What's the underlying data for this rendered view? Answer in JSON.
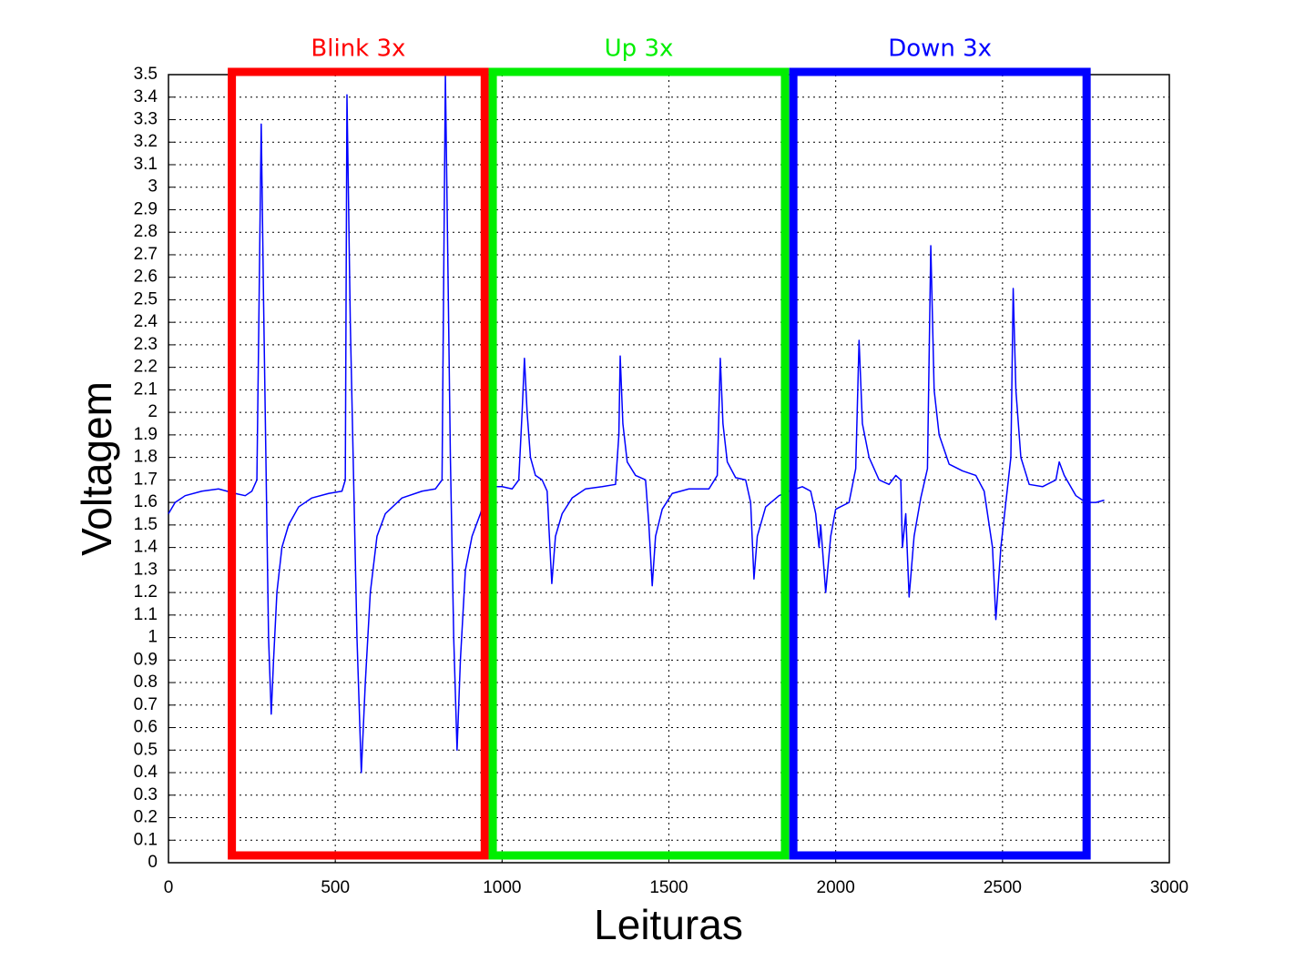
{
  "chart_data": {
    "type": "line",
    "x_label": "Leituras",
    "y_label": "Voltagem",
    "xlim": [
      0,
      3000
    ],
    "ylim": [
      0,
      3.5
    ],
    "xticks": [
      0,
      500,
      1000,
      1500,
      2000,
      2500,
      3000
    ],
    "yticks": [
      0,
      0.1,
      0.2,
      0.3,
      0.4,
      0.5,
      0.6,
      0.7,
      0.8,
      0.9,
      1,
      1.1,
      1.2,
      1.3,
      1.4,
      1.5,
      1.6,
      1.7,
      1.8,
      1.9,
      2,
      2.1,
      2.2,
      2.3,
      2.4,
      2.5,
      2.6,
      2.7,
      2.8,
      2.9,
      3,
      3.1,
      3.2,
      3.3,
      3.4,
      3.5
    ],
    "grid": true,
    "color": "#0000ff",
    "annotations": [
      {
        "text": "Blink 3x",
        "color": "#ff0000",
        "x": [
          190,
          948
        ]
      },
      {
        "text": "Up 3x",
        "color": "#00ee00",
        "x": [
          972,
          1848
        ]
      },
      {
        "text": "Down 3x",
        "color": "#0000ff",
        "x": [
          1873,
          2752
        ]
      }
    ],
    "x": [
      0,
      20,
      50,
      100,
      150,
      200,
      230,
      250,
      265,
      270,
      278,
      285,
      292,
      300,
      308,
      315,
      325,
      340,
      360,
      390,
      430,
      480,
      520,
      530,
      535,
      545,
      555,
      565,
      578,
      590,
      605,
      625,
      650,
      700,
      760,
      800,
      820,
      830,
      838,
      845,
      855,
      865,
      875,
      890,
      910,
      935,
      950,
      970,
      1000,
      1030,
      1050,
      1060,
      1067,
      1075,
      1085,
      1100,
      1120,
      1135,
      1140,
      1149,
      1160,
      1180,
      1210,
      1250,
      1300,
      1340,
      1350,
      1354,
      1362,
      1375,
      1400,
      1430,
      1440,
      1450,
      1460,
      1480,
      1510,
      1560,
      1620,
      1645,
      1654,
      1662,
      1675,
      1700,
      1730,
      1745,
      1755,
      1765,
      1790,
      1830,
      1860,
      1900,
      1925,
      1940,
      1950,
      1955,
      1970,
      1985,
      2000,
      2040,
      2060,
      2070,
      2080,
      2100,
      2130,
      2160,
      2180,
      2195,
      2200,
      2210,
      2220,
      2235,
      2255,
      2275,
      2285,
      2295,
      2310,
      2340,
      2380,
      2420,
      2445,
      2470,
      2480,
      2495,
      2510,
      2525,
      2532,
      2540,
      2555,
      2580,
      2620,
      2660,
      2670,
      2685,
      2720,
      2750,
      2780,
      2805
    ],
    "values": [
      1.55,
      1.6,
      1.63,
      1.65,
      1.66,
      1.64,
      1.63,
      1.65,
      1.7,
      2.3,
      3.28,
      2.5,
      1.8,
      1.0,
      0.66,
      0.9,
      1.2,
      1.4,
      1.5,
      1.58,
      1.62,
      1.64,
      1.65,
      1.7,
      3.41,
      2.4,
      1.7,
      1.0,
      0.4,
      0.8,
      1.2,
      1.45,
      1.55,
      1.62,
      1.65,
      1.66,
      1.7,
      3.5,
      2.6,
      1.8,
      1.0,
      0.5,
      0.9,
      1.3,
      1.45,
      1.55,
      1.62,
      1.67,
      1.67,
      1.66,
      1.7,
      2.0,
      2.24,
      2.0,
      1.8,
      1.72,
      1.7,
      1.65,
      1.5,
      1.24,
      1.45,
      1.55,
      1.62,
      1.66,
      1.67,
      1.68,
      1.9,
      2.25,
      1.95,
      1.78,
      1.72,
      1.7,
      1.5,
      1.23,
      1.45,
      1.57,
      1.64,
      1.66,
      1.66,
      1.72,
      2.24,
      1.95,
      1.78,
      1.71,
      1.7,
      1.6,
      1.26,
      1.45,
      1.58,
      1.63,
      1.65,
      1.67,
      1.65,
      1.55,
      1.4,
      1.5,
      1.2,
      1.45,
      1.57,
      1.6,
      1.75,
      2.32,
      1.95,
      1.8,
      1.7,
      1.68,
      1.72,
      1.7,
      1.4,
      1.55,
      1.18,
      1.45,
      1.62,
      1.75,
      2.74,
      2.1,
      1.9,
      1.77,
      1.74,
      1.72,
      1.65,
      1.4,
      1.08,
      1.4,
      1.6,
      1.8,
      2.55,
      2.1,
      1.8,
      1.68,
      1.67,
      1.7,
      1.78,
      1.72,
      1.63,
      1.6,
      1.6,
      1.61
    ]
  }
}
